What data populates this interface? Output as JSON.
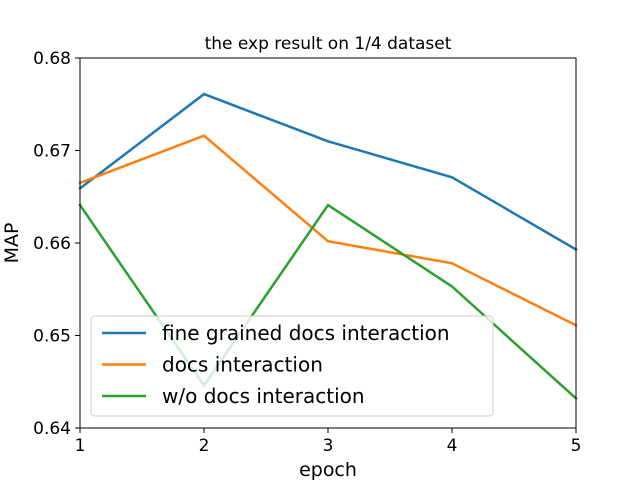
{
  "chart_data": {
    "type": "line",
    "title": "the exp result on 1/4 dataset",
    "xlabel": "epoch",
    "ylabel": "MAP",
    "x": [
      1,
      2,
      3,
      4,
      5
    ],
    "xlim": [
      1,
      5
    ],
    "ylim": [
      0.64,
      0.68
    ],
    "xticks": [
      "1",
      "2",
      "3",
      "4",
      "5"
    ],
    "yticks": [
      "0.64",
      "0.65",
      "0.66",
      "0.67",
      "0.68"
    ],
    "grid": false,
    "legend_position": "lower-left",
    "series": [
      {
        "name": "fine grained docs interaction",
        "color": "#1f77b4",
        "values": [
          0.6659,
          0.6761,
          0.671,
          0.6671,
          0.6593
        ]
      },
      {
        "name": "docs interaction",
        "color": "#ff7f0e",
        "values": [
          0.6665,
          0.6716,
          0.6602,
          0.6578,
          0.6511
        ]
      },
      {
        "name": "w/o docs interaction",
        "color": "#2ca02c",
        "values": [
          0.6641,
          0.6446,
          0.6641,
          0.6553,
          0.6432
        ]
      }
    ]
  }
}
